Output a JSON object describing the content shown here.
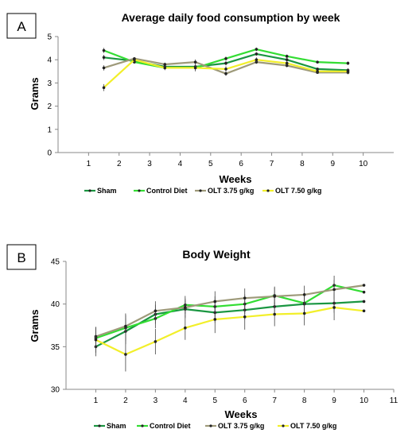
{
  "chart_data": [
    {
      "type": "line",
      "panel_label": "A",
      "title": "Average daily food consumption by week",
      "xlabel": "Weeks",
      "ylabel": "Grams",
      "xlim": [
        0,
        11
      ],
      "ylim": [
        0,
        5
      ],
      "x_ticks": [
        "1",
        "2",
        "3",
        "4",
        "5",
        "6",
        "7",
        "8",
        "9",
        "10"
      ],
      "y_ticks": [
        "0",
        "1",
        "2",
        "3",
        "4",
        "5"
      ],
      "x": [
        1.5,
        2.5,
        3.5,
        4.5,
        5.5,
        6.5,
        7.5,
        8.5,
        9.5
      ],
      "grid": false,
      "legend_position": "bottom",
      "series": [
        {
          "name": "Sham",
          "color": "#1a9641",
          "values": [
            4.1,
            3.95,
            3.7,
            3.7,
            3.85,
            4.25,
            4.0,
            3.6,
            3.55
          ]
        },
        {
          "name": "Control Diet",
          "color": "#33dd33",
          "values": [
            4.4,
            3.9,
            3.65,
            3.65,
            4.05,
            4.45,
            4.15,
            3.9,
            3.85
          ]
        },
        {
          "name": "OLT 3.75 g/kg",
          "color": "#9e9a7a",
          "values": [
            3.65,
            4.05,
            3.8,
            3.9,
            3.4,
            3.9,
            3.75,
            3.45,
            3.45
          ]
        },
        {
          "name": "OLT  7.50 g/kg",
          "color": "#f2ef2a",
          "values": [
            2.8,
            4.0,
            3.65,
            3.65,
            3.6,
            4.0,
            3.85,
            3.5,
            3.5
          ]
        }
      ]
    },
    {
      "type": "line",
      "panel_label": "B",
      "title": "Body Weight",
      "xlabel": "Weeks",
      "ylabel": "Grams",
      "xlim": [
        0,
        11
      ],
      "ylim": [
        30,
        45
      ],
      "x_ticks": [
        "1",
        "2",
        "3",
        "4",
        "5",
        "6",
        "7",
        "8",
        "9",
        "10",
        "11"
      ],
      "y_ticks": [
        "30",
        "35",
        "40",
        "45"
      ],
      "x": [
        1,
        2,
        3,
        4,
        5,
        6,
        7,
        8,
        9,
        10
      ],
      "grid": false,
      "legend_position": "bottom",
      "series": [
        {
          "name": "Sham",
          "color": "#1a9641",
          "values": [
            35.0,
            36.8,
            38.8,
            39.4,
            39.0,
            39.3,
            39.7,
            40.0,
            40.1,
            40.3
          ]
        },
        {
          "name": "Control Diet",
          "color": "#33dd33",
          "values": [
            36.0,
            37.2,
            38.3,
            39.9,
            39.7,
            40.0,
            41.0,
            40.1,
            42.2,
            41.4
          ]
        },
        {
          "name": "OLT 3.75 g/kg",
          "color": "#9e9a7a",
          "values": [
            36.2,
            37.4,
            39.2,
            39.6,
            40.3,
            40.7,
            40.9,
            41.1,
            41.7,
            42.2
          ]
        },
        {
          "name": "OLT  7.50 g/kg",
          "color": "#f2ef2a",
          "values": [
            35.8,
            34.1,
            35.6,
            37.2,
            38.2,
            38.5,
            38.8,
            38.9,
            39.6,
            39.2
          ]
        }
      ]
    }
  ]
}
